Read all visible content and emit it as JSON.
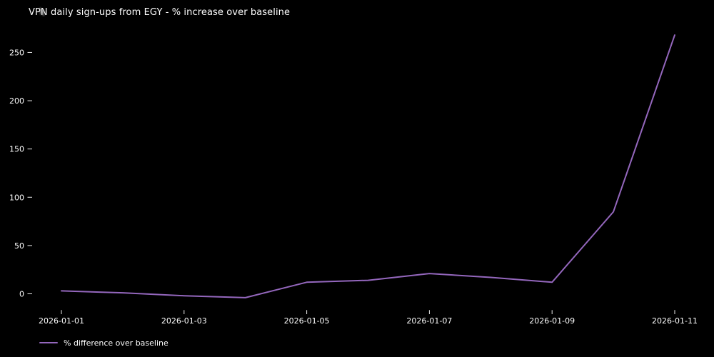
{
  "window": {
    "background": "#000000",
    "text_color": "#ffffff",
    "tick_color": "#eaeaea"
  },
  "chart_data": {
    "type": "line",
    "title": "VPN daily sign-ups from EGY - % increase over baseline",
    "x": [
      "2026-01-01",
      "2026-01-02",
      "2026-01-03",
      "2026-01-04",
      "2026-01-05",
      "2026-01-06",
      "2026-01-07",
      "2026-01-08",
      "2026-01-09",
      "2026-01-10",
      "2026-01-11"
    ],
    "series": [
      {
        "name": "% difference over baseline",
        "values": [
          3,
          1,
          -2,
          -4,
          12,
          14,
          21,
          17,
          12,
          85,
          268
        ],
        "color": "#9467bd"
      }
    ],
    "x_tick_labels": [
      "2026-01-01",
      "2026-01-03",
      "2026-01-05",
      "2026-01-07",
      "2026-01-09",
      "2026-01-11"
    ],
    "x_tick_indices": [
      0,
      2,
      4,
      6,
      8,
      10
    ],
    "y_ticks": [
      0,
      50,
      100,
      150,
      200,
      250
    ],
    "ylim": [
      -17.6,
      281.6
    ],
    "xlabel": "",
    "ylabel": "",
    "grid": false,
    "legend_position": "lower-left",
    "background": "#000000"
  },
  "legend": {
    "label": "% difference over baseline"
  }
}
